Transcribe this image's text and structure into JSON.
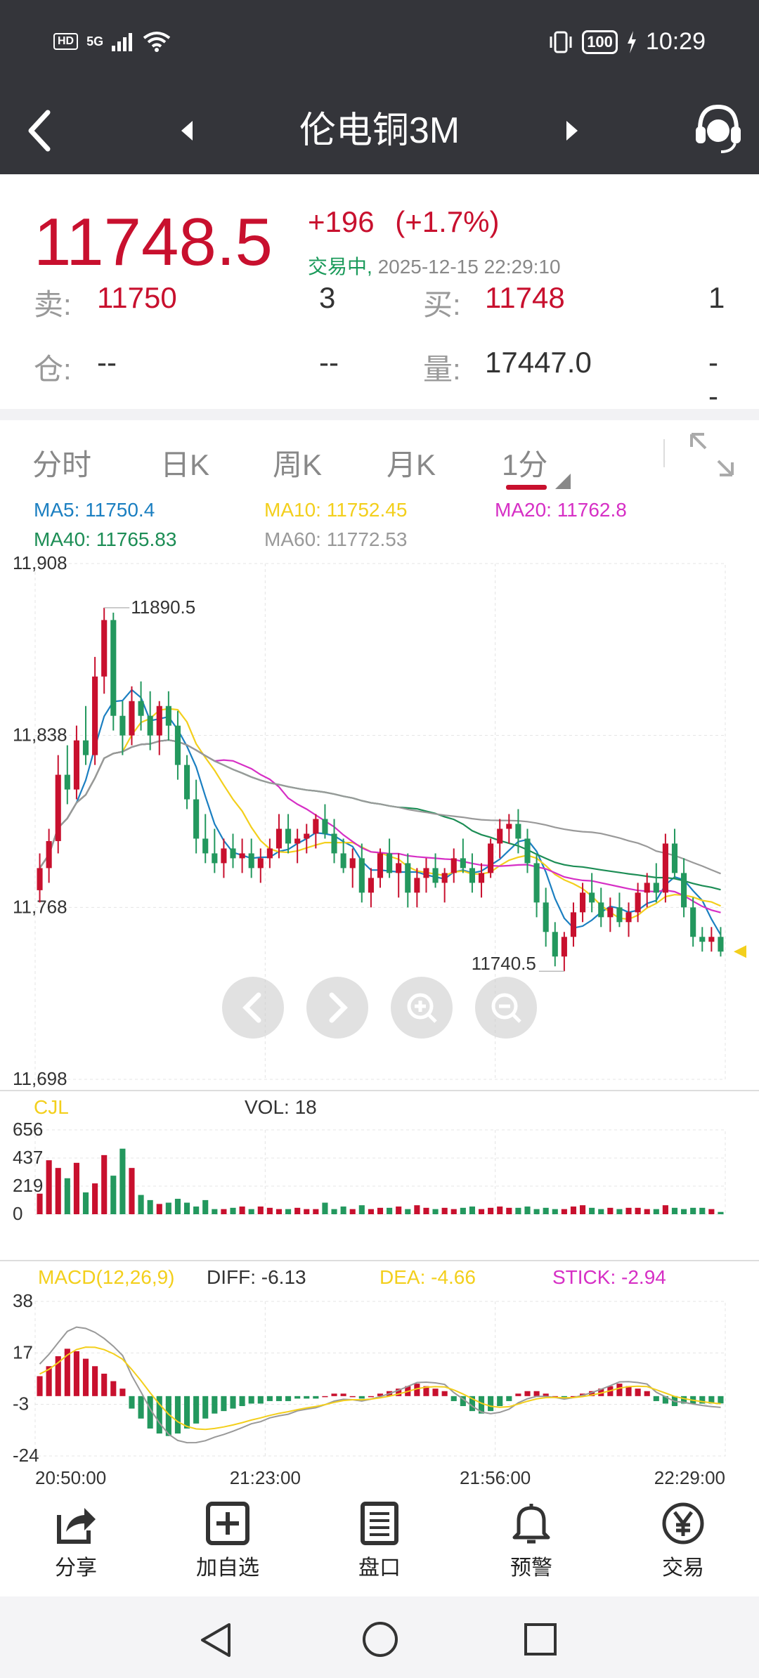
{
  "status_bar": {
    "network": "HD",
    "signal": "5G",
    "battery": "100",
    "time": "10:29"
  },
  "header": {
    "title": "伦电铜3M"
  },
  "quote": {
    "price": "11748.5",
    "change": "+196",
    "change_pct": "(+1.7%)",
    "status": "交易中,",
    "datetime": "2025-12-15 22:29:10",
    "sell_label": "卖:",
    "sell_price": "11750",
    "sell_qty": "3",
    "buy_label": "买:",
    "buy_price": "11748",
    "buy_qty": "1",
    "position_label": "仓:",
    "position_value": "--",
    "position_change": "--",
    "volume_label": "量:",
    "volume_value": "17447.0",
    "volume_change": "--"
  },
  "tabs": [
    {
      "label": "分时"
    },
    {
      "label": "日K"
    },
    {
      "label": "周K"
    },
    {
      "label": "月K"
    },
    {
      "label": "1分"
    }
  ],
  "ma": {
    "ma5": "MA5: 11750.4",
    "ma10": "MA10: 11752.45",
    "ma20": "MA20: 11762.8",
    "ma40": "MA40: 11765.83",
    "ma60": "MA60: 11772.53"
  },
  "colors": {
    "up": "#c8102e",
    "down": "#23985e",
    "ma5": "#1b7fc1",
    "ma10": "#f3cf1c",
    "ma20": "#d62fc5",
    "ma40": "#1c8d55",
    "ma60": "#999999"
  },
  "volume_panel": {
    "title": "CJL",
    "vol": "VOL: 18"
  },
  "macd_panel": {
    "title": "MACD(12,26,9)",
    "diff": "DIFF: -6.13",
    "dea": "DEA: -4.66",
    "stick": "STICK: -2.94"
  },
  "chart_data": {
    "type": "candlestick",
    "price_axis": {
      "ticks": [
        "11,908",
        "11,838",
        "11,768",
        "11,698"
      ],
      "range": [
        11698,
        11908
      ]
    },
    "annotations": {
      "high": "11890.5",
      "low": "11740.5"
    },
    "volume_axis": {
      "ticks": [
        "656",
        "437",
        "219",
        "0"
      ],
      "range": [
        0,
        656
      ]
    },
    "macd_axis": {
      "ticks": [
        "38",
        "17",
        "-3",
        "-24"
      ],
      "range": [
        -24,
        38
      ]
    },
    "time_axis": [
      "20:50:00",
      "21:23:00",
      "21:56:00",
      "22:29:00"
    ],
    "ohlc": [
      [
        11775,
        11790,
        11770,
        11784
      ],
      [
        11784,
        11800,
        11778,
        11795
      ],
      [
        11795,
        11830,
        11790,
        11822
      ],
      [
        11822,
        11834,
        11810,
        11816
      ],
      [
        11816,
        11842,
        11812,
        11836
      ],
      [
        11836,
        11850,
        11826,
        11830
      ],
      [
        11830,
        11870,
        11826,
        11862
      ],
      [
        11862,
        11890,
        11855,
        11885
      ],
      [
        11885,
        11888,
        11840,
        11846
      ],
      [
        11846,
        11852,
        11830,
        11838
      ],
      [
        11838,
        11858,
        11834,
        11852
      ],
      [
        11852,
        11860,
        11840,
        11846
      ],
      [
        11846,
        11856,
        11832,
        11838
      ],
      [
        11838,
        11852,
        11830,
        11850
      ],
      [
        11850,
        11856,
        11836,
        11842
      ],
      [
        11842,
        11848,
        11820,
        11826
      ],
      [
        11826,
        11830,
        11808,
        11812
      ],
      [
        11812,
        11820,
        11790,
        11796
      ],
      [
        11796,
        11806,
        11786,
        11790
      ],
      [
        11790,
        11800,
        11782,
        11786
      ],
      [
        11786,
        11796,
        11780,
        11792
      ],
      [
        11792,
        11798,
        11784,
        11788
      ],
      [
        11788,
        11796,
        11782,
        11790
      ],
      [
        11790,
        11796,
        11780,
        11784
      ],
      [
        11784,
        11792,
        11778,
        11788
      ],
      [
        11788,
        11796,
        11784,
        11792
      ],
      [
        11792,
        11806,
        11788,
        11800
      ],
      [
        11800,
        11806,
        11790,
        11794
      ],
      [
        11794,
        11800,
        11786,
        11796
      ],
      [
        11796,
        11802,
        11790,
        11798
      ],
      [
        11798,
        11806,
        11792,
        11804
      ],
      [
        11804,
        11810,
        11796,
        11798
      ],
      [
        11798,
        11804,
        11786,
        11790
      ],
      [
        11790,
        11796,
        11782,
        11784
      ],
      [
        11784,
        11792,
        11776,
        11788
      ],
      [
        11788,
        11794,
        11770,
        11774
      ],
      [
        11774,
        11784,
        11768,
        11780
      ],
      [
        11780,
        11792,
        11776,
        11790
      ],
      [
        11790,
        11796,
        11780,
        11782
      ],
      [
        11782,
        11790,
        11772,
        11786
      ],
      [
        11786,
        11790,
        11768,
        11774
      ],
      [
        11774,
        11784,
        11768,
        11780
      ],
      [
        11780,
        11788,
        11774,
        11784
      ],
      [
        11784,
        11790,
        11776,
        11778
      ],
      [
        11778,
        11784,
        11770,
        11782
      ],
      [
        11782,
        11792,
        11778,
        11788
      ],
      [
        11788,
        11796,
        11782,
        11784
      ],
      [
        11784,
        11790,
        11774,
        11778
      ],
      [
        11778,
        11786,
        11772,
        11782
      ],
      [
        11782,
        11796,
        11780,
        11794
      ],
      [
        11794,
        11804,
        11788,
        11800
      ],
      [
        11800,
        11806,
        11794,
        11802
      ],
      [
        11802,
        11808,
        11790,
        11796
      ],
      [
        11796,
        11800,
        11782,
        11786
      ],
      [
        11786,
        11790,
        11764,
        11770
      ],
      [
        11770,
        11776,
        11752,
        11758
      ],
      [
        11758,
        11762,
        11744,
        11748
      ],
      [
        11748,
        11758,
        11742,
        11756
      ],
      [
        11756,
        11770,
        11752,
        11766
      ],
      [
        11766,
        11778,
        11762,
        11774
      ],
      [
        11774,
        11782,
        11766,
        11770
      ],
      [
        11770,
        11776,
        11760,
        11764
      ],
      [
        11764,
        11772,
        11758,
        11768
      ],
      [
        11768,
        11774,
        11760,
        11762
      ],
      [
        11762,
        11770,
        11756,
        11766
      ],
      [
        11766,
        11778,
        11762,
        11774
      ],
      [
        11774,
        11782,
        11768,
        11778
      ],
      [
        11778,
        11786,
        11770,
        11774
      ],
      [
        11774,
        11798,
        11770,
        11794
      ],
      [
        11794,
        11800,
        11780,
        11782
      ],
      [
        11782,
        11788,
        11764,
        11768
      ],
      [
        11768,
        11772,
        11752,
        11756
      ],
      [
        11756,
        11760,
        11750,
        11754
      ],
      [
        11754,
        11760,
        11750,
        11756
      ],
      [
        11756,
        11760,
        11748,
        11750
      ]
    ],
    "volume": [
      160,
      420,
      360,
      280,
      400,
      170,
      240,
      460,
      300,
      510,
      360,
      150,
      110,
      80,
      90,
      120,
      90,
      60,
      110,
      40,
      40,
      50,
      60,
      40,
      60,
      50,
      40,
      40,
      50,
      40,
      40,
      90,
      40,
      60,
      40,
      70,
      40,
      50,
      50,
      60,
      40,
      70,
      50,
      40,
      50,
      40,
      50,
      60,
      40,
      50,
      60,
      50,
      50,
      60,
      40,
      50,
      40,
      40,
      60,
      70,
      50,
      40,
      50,
      40,
      50,
      50,
      40,
      40,
      70,
      50,
      40,
      50,
      50,
      40,
      18
    ],
    "macd_stick": [
      8,
      12,
      16,
      19,
      18,
      15,
      12,
      9,
      6,
      3,
      -5,
      -9,
      -13,
      -15,
      -16,
      -15,
      -13,
      -11,
      -9,
      -7,
      -6,
      -5,
      -4,
      -3,
      -3,
      -2,
      -2,
      -2,
      -1,
      -1,
      -1,
      0,
      1,
      1,
      0,
      -1,
      0,
      1,
      2,
      3,
      4,
      5,
      4,
      3,
      2,
      -2,
      -4,
      -6,
      -7,
      -6,
      -4,
      -2,
      1,
      2,
      2,
      1,
      0,
      -1,
      0,
      1,
      2,
      3,
      4,
      5,
      4,
      3,
      2,
      -2,
      -3,
      -4,
      -3,
      -3,
      -3,
      -3,
      -2.94
    ]
  },
  "toolbar": [
    {
      "label": "分享",
      "icon": "share-icon"
    },
    {
      "label": "加自选",
      "icon": "add-favorite-icon"
    },
    {
      "label": "盘口",
      "icon": "order-book-icon"
    },
    {
      "label": "预警",
      "icon": "bell-icon"
    },
    {
      "label": "交易",
      "icon": "yen-trade-icon"
    }
  ]
}
